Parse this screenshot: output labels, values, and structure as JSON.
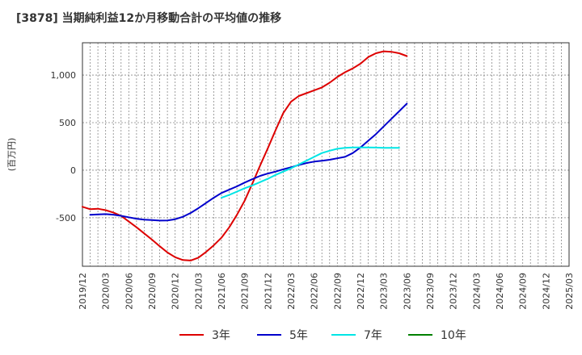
{
  "chart_data": {
    "type": "line",
    "title": "[3878]  当期純利益12か月移動合計の平均値の推移",
    "ylabel": "(百万円)",
    "xlabel": "",
    "ylim": [
      -1010,
      1340
    ],
    "yticks": [
      -500,
      0,
      500,
      1000
    ],
    "ytick_labels": [
      "-500",
      "0",
      "500",
      "1,000"
    ],
    "x_tick_labels": [
      "2019/12",
      "2020/03",
      "2020/06",
      "2020/09",
      "2020/12",
      "2021/03",
      "2021/06",
      "2021/09",
      "2021/12",
      "2022/03",
      "2022/06",
      "2022/09",
      "2022/12",
      "2023/03",
      "2023/06",
      "2023/09",
      "2023/12",
      "2024/03",
      "2024/06",
      "2024/09",
      "2024/12",
      "2025/03"
    ],
    "grid": true,
    "legend_position": "bottom",
    "series": [
      {
        "name": "3年",
        "color": "#dd0000",
        "start_index": 0,
        "values": [
          -385,
          -410,
          -405,
          -420,
          -445,
          -480,
          -540,
          -600,
          -665,
          -730,
          -800,
          -865,
          -915,
          -945,
          -950,
          -920,
          -860,
          -790,
          -710,
          -600,
          -470,
          -320,
          -140,
          50,
          230,
          420,
          600,
          720,
          780,
          810,
          840,
          870,
          920,
          980,
          1030,
          1070,
          1120,
          1190,
          1230,
          1250,
          1245,
          1230,
          1200
        ]
      },
      {
        "name": "5年",
        "color": "#0000cc",
        "start_index": 1,
        "values": [
          -470,
          -465,
          -462,
          -468,
          -480,
          -495,
          -510,
          -520,
          -525,
          -530,
          -528,
          -515,
          -490,
          -450,
          -400,
          -345,
          -290,
          -240,
          -205,
          -170,
          -130,
          -95,
          -60,
          -35,
          -15,
          10,
          30,
          55,
          75,
          90,
          100,
          110,
          125,
          140,
          180,
          240,
          310,
          380,
          460,
          540,
          620,
          700
        ]
      },
      {
        "name": "7年",
        "color": "#00e5e5",
        "start_index": 18,
        "values": [
          -290,
          -260,
          -225,
          -190,
          -160,
          -125,
          -90,
          -50,
          -15,
          20,
          60,
          100,
          140,
          180,
          205,
          225,
          235,
          240,
          240,
          240,
          238,
          235,
          235,
          235
        ]
      },
      {
        "name": "10年",
        "color": "#008000",
        "start_index": 0,
        "values": []
      }
    ]
  }
}
